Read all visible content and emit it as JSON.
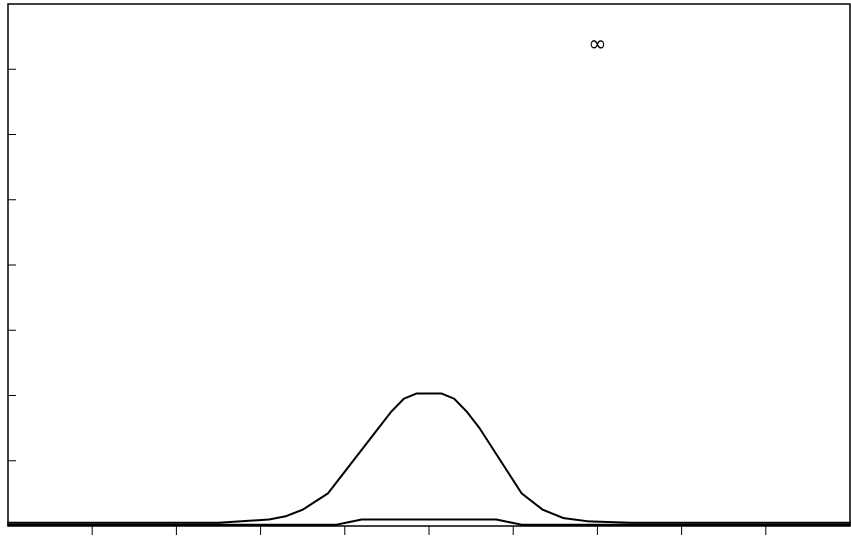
{
  "chart_data": {
    "type": "line",
    "title": "",
    "xlabel": "",
    "ylabel": "",
    "xlim": [
      0,
      10
    ],
    "ylim": [
      0,
      8
    ],
    "x_ticks": [
      1,
      2,
      3,
      4,
      5,
      6,
      7,
      8,
      9
    ],
    "y_ticks": [
      1,
      2,
      3,
      4,
      5,
      6,
      7
    ],
    "grid": false,
    "legend": "none",
    "annotations": [
      {
        "text": "∞",
        "x": 7,
        "y": 7.4
      }
    ],
    "series": [
      {
        "color": "#000000",
        "x": [
          0,
          2.5,
          3.1,
          3.3,
          3.5,
          3.8,
          4.1,
          4.4,
          4.55,
          4.7,
          4.85,
          5.0,
          5.15,
          5.3,
          5.45,
          5.6,
          5.85,
          6.1,
          6.35,
          6.6,
          6.9,
          7.4,
          10
        ],
        "y": [
          0.05,
          0.05,
          0.1,
          0.15,
          0.25,
          0.5,
          1.0,
          1.5,
          1.75,
          1.95,
          2.03,
          2.03,
          2.03,
          1.95,
          1.75,
          1.5,
          1.0,
          0.5,
          0.25,
          0.12,
          0.07,
          0.05,
          0.05
        ]
      },
      {
        "color": "#000000",
        "x": [
          0,
          3.9,
          4.05,
          4.2,
          4.5,
          5.0,
          5.5,
          5.8,
          5.95,
          6.1,
          10
        ],
        "y": [
          0.02,
          0.02,
          0.06,
          0.1,
          0.1,
          0.1,
          0.1,
          0.1,
          0.06,
          0.02,
          0.02
        ]
      }
    ]
  }
}
